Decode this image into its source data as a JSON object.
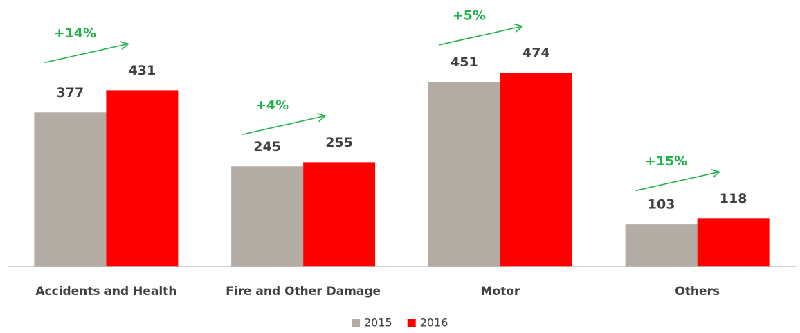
{
  "chart_data": {
    "type": "bar",
    "categories": [
      "Accidents and Health",
      "Fire and Other Damage",
      "Motor",
      "Others"
    ],
    "series": [
      {
        "name": "2015",
        "color": "#b3aca5",
        "values": [
          377,
          245,
          451,
          103
        ]
      },
      {
        "name": "2016",
        "color": "#ff0000",
        "values": [
          431,
          255,
          474,
          118
        ]
      }
    ],
    "annotations": [
      "+14%",
      "+4%",
      "+5%",
      "+15%"
    ],
    "annotation_color": "#22b14c",
    "legend": "bottom"
  }
}
